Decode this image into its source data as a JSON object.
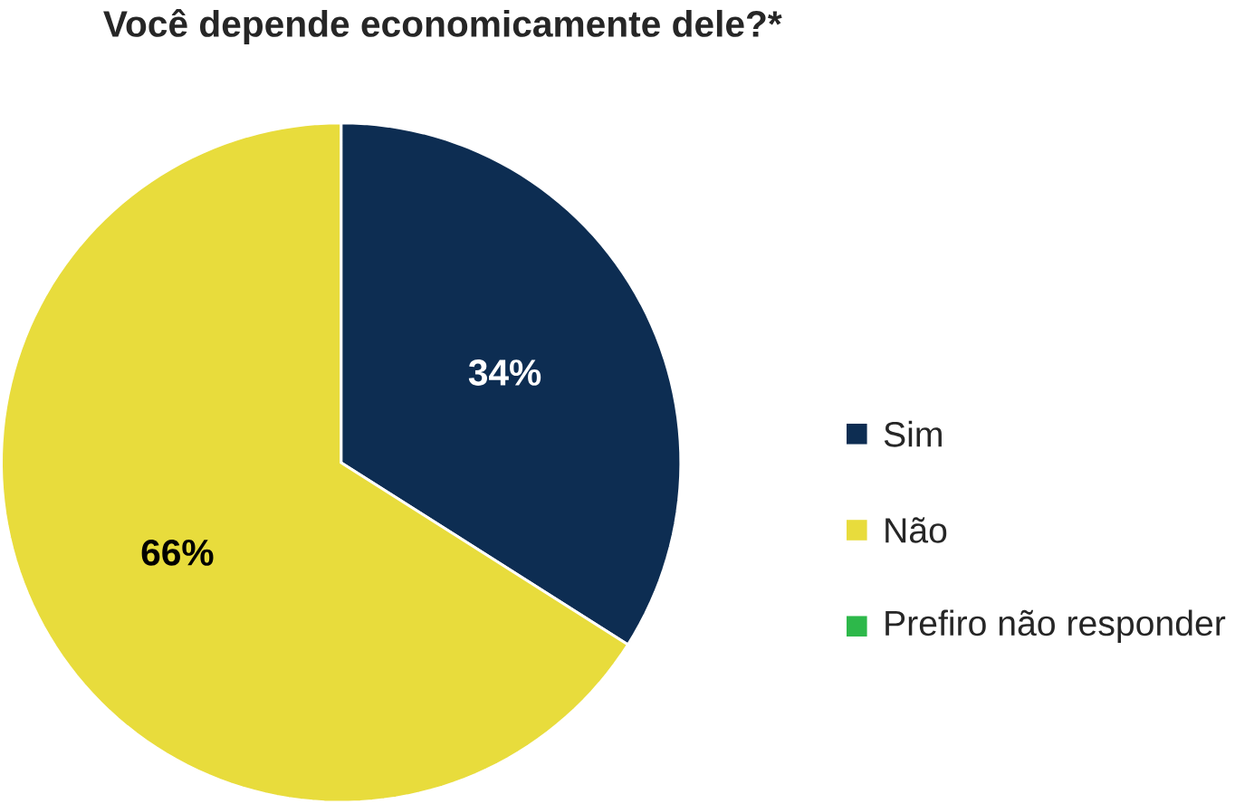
{
  "chart_data": {
    "type": "pie",
    "title": "Você depende economicamente dele?*",
    "categories": [
      "Sim",
      "Não",
      "Prefiro não responder"
    ],
    "values": [
      34,
      66,
      0
    ],
    "colors": [
      "#0d2d52",
      "#e8dc3c",
      "#2db84a"
    ],
    "value_labels": [
      "34%",
      "66%",
      null
    ],
    "legend": "right"
  }
}
